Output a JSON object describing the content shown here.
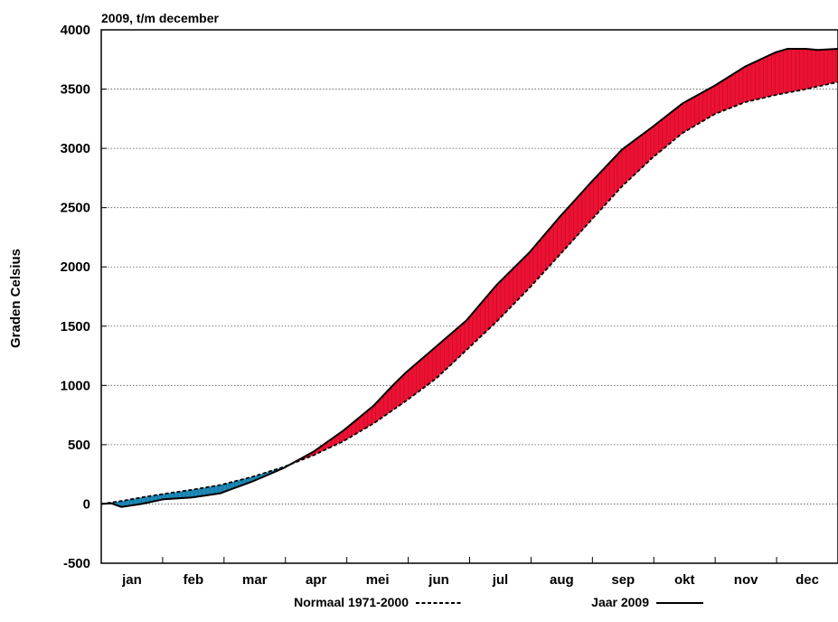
{
  "chart_data": {
    "type": "area",
    "title": "2009, t/m december",
    "xlabel": "",
    "ylabel": "Graden Celsius",
    "categories": [
      "jan",
      "feb",
      "mar",
      "apr",
      "mei",
      "jun",
      "jul",
      "aug",
      "sep",
      "okt",
      "nov",
      "dec"
    ],
    "x_unit": "day of year",
    "xlim": [
      0,
      365
    ],
    "ylim": [
      -500,
      4000
    ],
    "yticks": [
      -500,
      0,
      500,
      1000,
      1500,
      2000,
      2500,
      3000,
      3500,
      4000
    ],
    "grid": true,
    "legend_placement": "bottom",
    "colors": {
      "above_normal": "#ee1133",
      "below_normal": "#1a8ab8",
      "line": "#000000"
    },
    "series": [
      {
        "name": "Normaal 1971-2000",
        "line_style": "dashed",
        "x": [
          0,
          10,
          20,
          31,
          45,
          59,
          75,
          90,
          105,
          120,
          135,
          151,
          166,
          181,
          196,
          212,
          227,
          243,
          258,
          273,
          288,
          304,
          319,
          334,
          349,
          365
        ],
        "values": [
          0,
          25,
          55,
          85,
          120,
          160,
          230,
          310,
          410,
          530,
          680,
          870,
          1060,
          1300,
          1540,
          1820,
          2100,
          2400,
          2680,
          2920,
          3130,
          3290,
          3390,
          3450,
          3500,
          3560
        ]
      },
      {
        "name": "Jaar 2009",
        "line_style": "solid",
        "x": [
          0,
          5,
          10,
          20,
          31,
          45,
          59,
          75,
          90,
          105,
          120,
          135,
          145,
          151,
          166,
          181,
          196,
          212,
          227,
          243,
          258,
          273,
          288,
          304,
          319,
          334,
          340,
          349,
          355,
          365
        ],
        "values": [
          0,
          5,
          -25,
          0,
          40,
          55,
          90,
          190,
          300,
          440,
          620,
          830,
          1010,
          1110,
          1330,
          1550,
          1850,
          2120,
          2420,
          2720,
          2990,
          3180,
          3380,
          3530,
          3690,
          3810,
          3840,
          3840,
          3830,
          3840
        ]
      }
    ]
  }
}
